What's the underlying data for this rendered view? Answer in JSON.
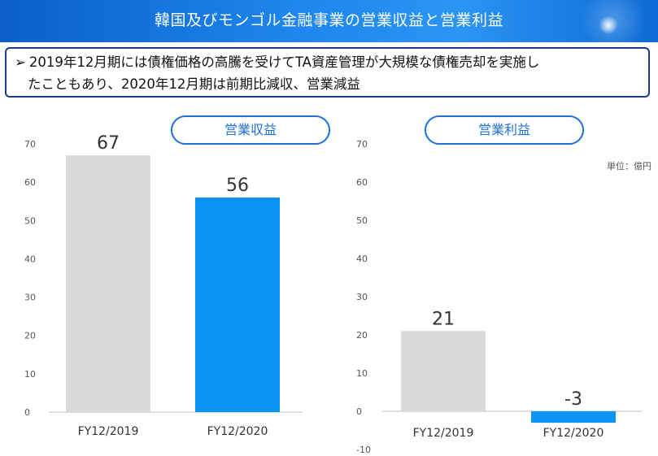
{
  "header": {
    "title": "韓国及びモンゴル金融事業の営業収益と営業利益"
  },
  "note": {
    "arrow": "➢",
    "line1": "2019年12月期には債権価格の高騰を受けてTA資産管理が大規模な債権売却を実施し",
    "line2": "たこともあり、2020年12月期は前期比減収、営業減益"
  },
  "unit_label": "単位：億円",
  "colors": {
    "prev": "#d9d9d9",
    "curr": "#0b93f5",
    "accent": "#1f6fd8"
  },
  "chart_data": [
    {
      "type": "bar",
      "title": "営業収益",
      "categories": [
        "FY12/2019",
        "FY12/2020"
      ],
      "values": [
        67,
        56
      ],
      "ylim": [
        0,
        70
      ],
      "yticks": [
        0,
        10,
        20,
        30,
        40,
        50,
        60,
        70
      ],
      "grid": false
    },
    {
      "type": "bar",
      "title": "営業利益",
      "categories": [
        "FY12/2019",
        "FY12/2020"
      ],
      "values": [
        21,
        -3
      ],
      "ylim": [
        -10,
        70
      ],
      "yticks": [
        -10,
        0,
        10,
        20,
        30,
        40,
        50,
        60,
        70
      ],
      "grid": false
    }
  ]
}
